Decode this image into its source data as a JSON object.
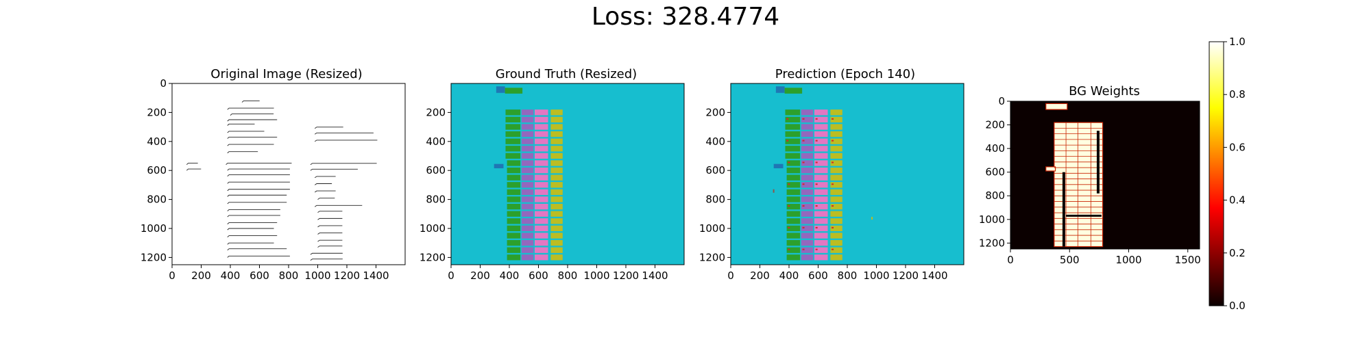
{
  "figure": {
    "suptitle": "Loss: 328.4774"
  },
  "panels": [
    {
      "id": "original",
      "title": "Original Image (Resized)"
    },
    {
      "id": "ground_truth",
      "title": "Ground Truth (Resized)"
    },
    {
      "id": "prediction",
      "title": "Prediction (Epoch 140)"
    },
    {
      "id": "bg_weights",
      "title": "BG Weights"
    }
  ],
  "colorbar": {
    "ticks": [
      "0.0",
      "0.2",
      "0.4",
      "0.6",
      "0.8",
      "1.0"
    ],
    "range": [
      0,
      1
    ],
    "colormap": "hot"
  },
  "colors": {
    "segmentation_background": "#17becf",
    "green": "#2ca02c",
    "purple": "#9467bd",
    "pink": "#e377c2",
    "olive": "#bcbd22",
    "blue": "#1f77b4",
    "brown": "#8c564b",
    "weights_background": "#0b0000",
    "weights_foreground": "#ffffe0",
    "weights_border": "#c82000"
  },
  "chart_data": [
    {
      "type": "heatmap",
      "panel": "original",
      "content": "scanned handwritten ledger page",
      "x_range": [
        0,
        1600
      ],
      "y_range": [
        0,
        1250
      ],
      "x_ticks": [
        0,
        200,
        400,
        600,
        800,
        1000,
        1200,
        1400
      ],
      "y_ticks": [
        0,
        200,
        400,
        600,
        800,
        1000,
        1200
      ]
    },
    {
      "type": "heatmap",
      "panel": "ground_truth",
      "content": "segmentation mask",
      "x_range": [
        0,
        1600
      ],
      "y_range": [
        0,
        1250
      ],
      "x_ticks": [
        0,
        200,
        400,
        600,
        800,
        1000,
        1200,
        1400
      ],
      "y_ticks": [
        200,
        400,
        600,
        800,
        1000,
        1200
      ],
      "column_regions": [
        {
          "label": "green",
          "x": [
            370,
            480
          ],
          "y": [
            180,
            1230
          ]
        },
        {
          "label": "purple",
          "x": [
            480,
            570
          ],
          "y": [
            180,
            1230
          ]
        },
        {
          "label": "pink",
          "x": [
            570,
            670
          ],
          "y": [
            180,
            1230
          ]
        },
        {
          "label": "olive",
          "x": [
            680,
            770
          ],
          "y": [
            180,
            1230
          ]
        }
      ]
    },
    {
      "type": "heatmap",
      "panel": "prediction",
      "content": "predicted segmentation mask",
      "x_range": [
        0,
        1600
      ],
      "y_range": [
        0,
        1250
      ],
      "x_ticks": [
        0,
        200,
        400,
        600,
        800,
        1000,
        1200,
        1400
      ],
      "y_ticks": [
        200,
        400,
        600,
        800,
        1000,
        1200
      ],
      "column_regions": [
        {
          "label": "green",
          "x": [
            370,
            480
          ],
          "y": [
            180,
            1230
          ]
        },
        {
          "label": "purple",
          "x": [
            480,
            570
          ],
          "y": [
            180,
            1230
          ]
        },
        {
          "label": "pink",
          "x": [
            570,
            670
          ],
          "y": [
            180,
            1230
          ]
        },
        {
          "label": "olive",
          "x": [
            680,
            770
          ],
          "y": [
            180,
            1230
          ]
        }
      ]
    },
    {
      "type": "heatmap",
      "panel": "bg_weights",
      "content": "background weight map",
      "x_range": [
        0,
        1600
      ],
      "y_range": [
        0,
        1250
      ],
      "x_ticks": [
        0,
        500,
        1000,
        1500
      ],
      "y_ticks": [
        0,
        200,
        400,
        600,
        800,
        1000,
        1200
      ],
      "value_range": [
        0,
        1
      ],
      "foreground_region": {
        "x": [
          330,
          780
        ],
        "y": [
          180,
          1230
        ],
        "value": 1.0
      },
      "background_value": 0.0
    }
  ]
}
